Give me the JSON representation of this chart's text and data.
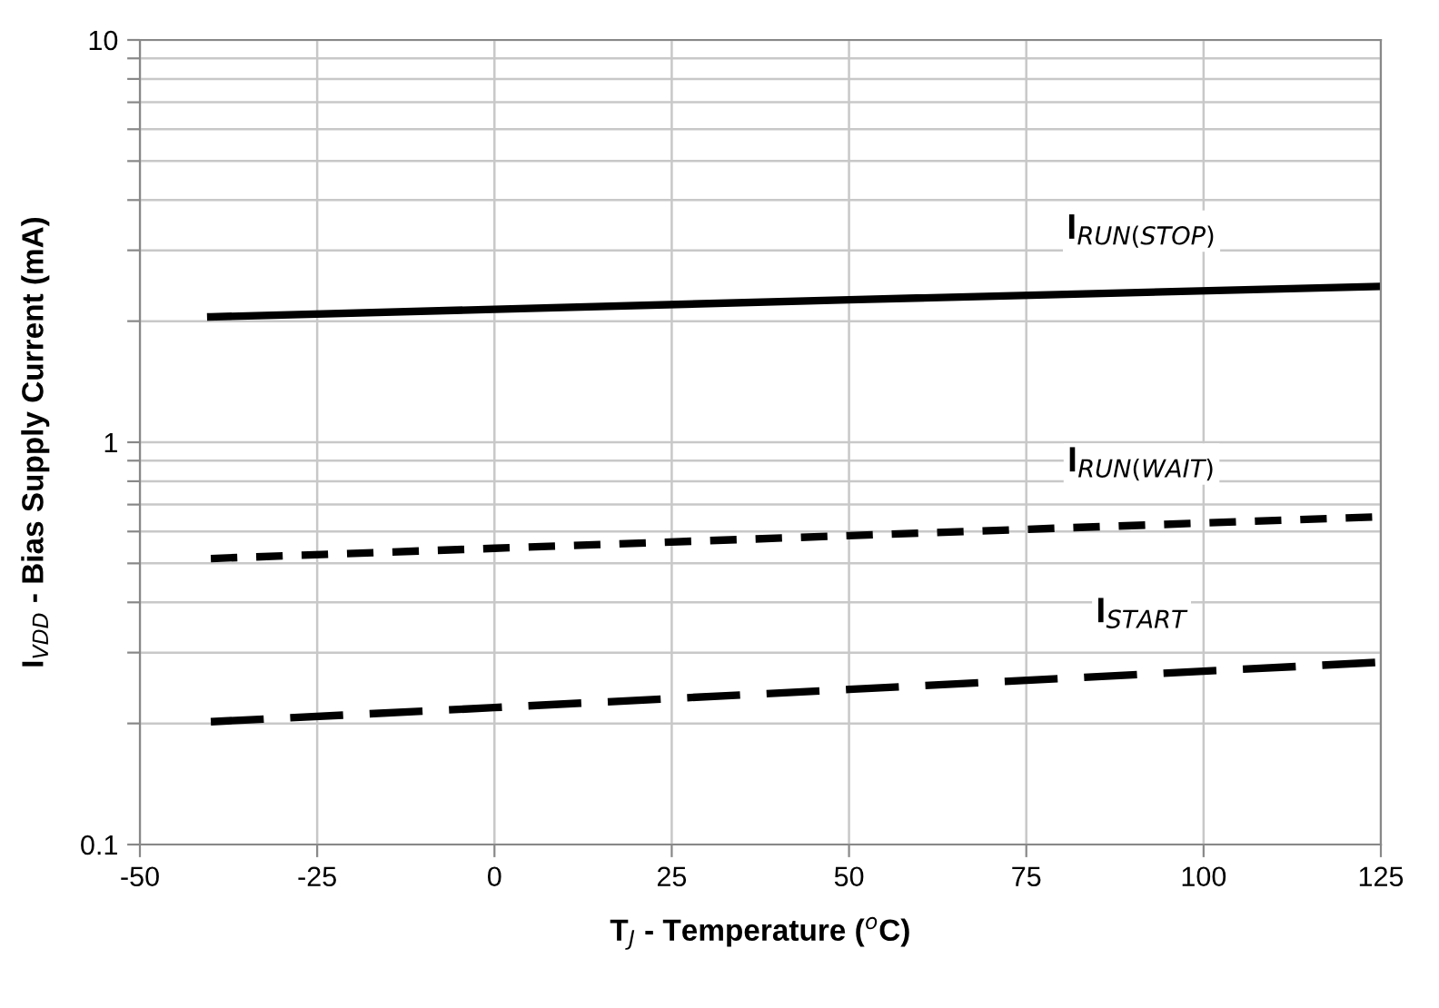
{
  "chart_data": {
    "type": "line",
    "xlabel": "T$_{J}$ - Temperature ($^{o}$C)",
    "ylabel": "I$_{VDD}$ - Bias Supply Current (mA)",
    "x": [
      -40,
      0,
      50,
      125
    ],
    "series": [
      {
        "name": "I$_{RUN(STOP)}$",
        "color": "#000000",
        "line_style": "solid",
        "values": [
          2.05,
          2.14,
          2.26,
          2.44
        ]
      },
      {
        "name": "I$_{RUN(WAIT)}$",
        "color": "#000000",
        "line_style": "dotted",
        "values": [
          0.514,
          0.545,
          0.586,
          0.653
        ]
      },
      {
        "name": "I$_{START}$",
        "color": "#000000",
        "line_style": "dashed",
        "values": [
          0.202,
          0.219,
          0.243,
          0.284
        ]
      }
    ],
    "log": "y",
    "xlim": [
      -50,
      125
    ],
    "xticks": [
      -50,
      -25,
      0,
      25,
      50,
      75,
      100,
      125
    ],
    "ylim": [
      0.1,
      10
    ],
    "yticks": [
      0.1,
      {
        "value": 0.2,
        "label": null
      },
      {
        "value": 0.3,
        "label": null
      },
      {
        "value": 0.4,
        "label": null
      },
      {
        "value": 0.5,
        "label": null
      },
      {
        "value": 0.6,
        "label": null
      },
      {
        "value": 0.7,
        "label": null
      },
      {
        "value": 0.8,
        "label": null
      },
      {
        "value": 0.9,
        "label": null
      },
      1,
      {
        "value": 2,
        "label": null
      },
      {
        "value": 3,
        "label": null
      },
      {
        "value": 4,
        "label": null
      },
      {
        "value": 5,
        "label": null
      },
      {
        "value": 6,
        "label": null
      },
      {
        "value": 7,
        "label": null
      },
      {
        "value": 8,
        "label": null
      },
      {
        "value": 9,
        "label": null
      },
      10
    ],
    "grid": true,
    "marker": "none"
  }
}
